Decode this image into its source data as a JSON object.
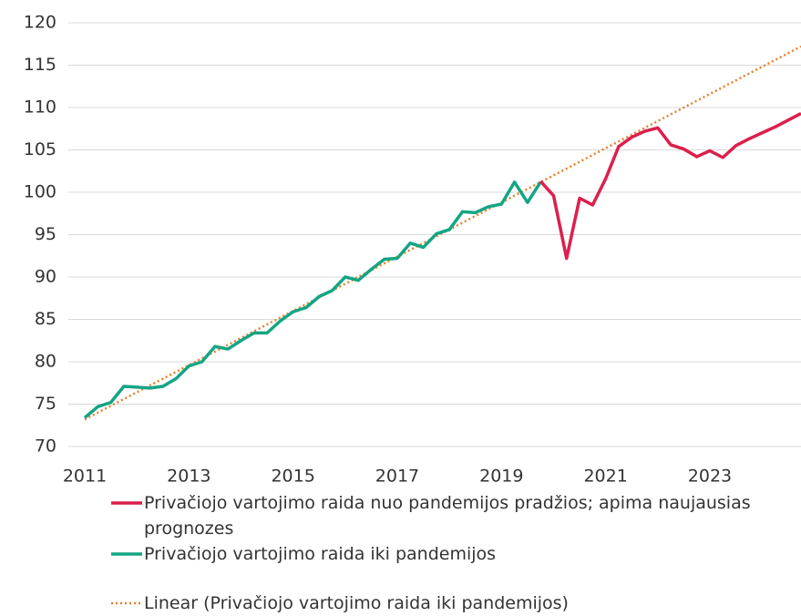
{
  "chart_data": {
    "type": "line",
    "categories": [
      "2011",
      null,
      null,
      null,
      null,
      null,
      null,
      null,
      "2013",
      null,
      null,
      null,
      null,
      null,
      null,
      null,
      "2015",
      null,
      null,
      null,
      null,
      null,
      null,
      null,
      "2017",
      null,
      null,
      null,
      null,
      null,
      null,
      null,
      "2019",
      null,
      null,
      null,
      null,
      null,
      null,
      null,
      "2021",
      null,
      null,
      null,
      null,
      null,
      null,
      null,
      "2023",
      null,
      null,
      null,
      null,
      null,
      null,
      null
    ],
    "series": [
      {
        "name": "Privačiojo vartojimo raida nuo pandemijos pradžios; apima naujausias prognozes",
        "color": "#dc1f4c",
        "line_style": "solid",
        "values": [
          null,
          null,
          null,
          null,
          null,
          null,
          null,
          null,
          null,
          null,
          null,
          null,
          null,
          null,
          null,
          null,
          null,
          null,
          null,
          null,
          null,
          null,
          null,
          null,
          null,
          null,
          null,
          null,
          null,
          null,
          null,
          null,
          null,
          null,
          null,
          101.3,
          99.6,
          92.2,
          99.3,
          98.5,
          101.6,
          105.4,
          106.5,
          107.2,
          107.6,
          105.6,
          105.1,
          104.2,
          104.9,
          104.1,
          105.5,
          106.3,
          107.0,
          107.7,
          108.5,
          109.3
        ]
      },
      {
        "name": "Privačiojo vartojimo raida iki pandemijos",
        "color": "#14a584",
        "line_style": "solid",
        "values": [
          73.4,
          74.7,
          75.2,
          77.1,
          77.0,
          76.9,
          77.1,
          78.0,
          79.5,
          80.0,
          81.8,
          81.5,
          82.5,
          83.4,
          83.4,
          84.8,
          85.9,
          86.4,
          87.7,
          88.4,
          90.0,
          89.6,
          90.9,
          92.1,
          92.2,
          94.0,
          93.5,
          95.1,
          95.6,
          97.7,
          97.6,
          98.3,
          98.6,
          101.2,
          98.8,
          101.2,
          null,
          null,
          null,
          null,
          null,
          null,
          null,
          null,
          null,
          null,
          null,
          null,
          null,
          null,
          null,
          null,
          null,
          null,
          null,
          null
        ]
      },
      {
        "name": "Linear (Privačiojo vartojimo raida iki pandemijos)",
        "color": "#e8802a",
        "line_style": "dotted",
        "values": [
          73.2,
          74.0,
          74.8,
          75.6,
          76.4,
          77.2,
          78.0,
          78.8,
          79.6,
          80.4,
          81.2,
          82.0,
          82.8,
          83.6,
          84.4,
          85.2,
          86.0,
          86.8,
          87.6,
          88.4,
          89.2,
          90.0,
          90.8,
          91.6,
          92.4,
          93.2,
          94.0,
          94.8,
          95.6,
          96.4,
          97.2,
          98.0,
          98.8,
          99.6,
          100.4,
          101.2,
          102.0,
          102.8,
          103.6,
          104.4,
          105.2,
          106.0,
          106.8,
          107.6,
          108.4,
          109.2,
          110.0,
          110.8,
          111.6,
          112.4,
          113.2,
          114.0,
          114.8,
          115.6,
          116.4,
          117.2
        ]
      }
    ],
    "ylim": [
      70,
      120
    ],
    "yticks": [
      70,
      75,
      80,
      85,
      90,
      95,
      100,
      105,
      110,
      115,
      120
    ],
    "grid": true
  }
}
